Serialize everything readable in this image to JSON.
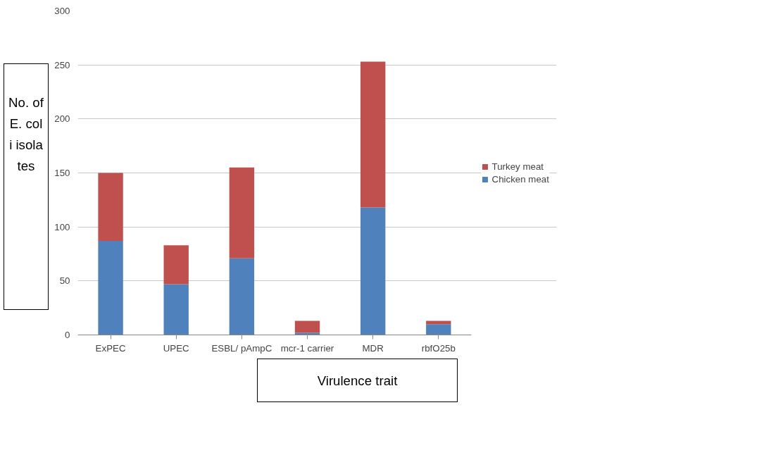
{
  "chart_data": {
    "type": "bar",
    "stacked": true,
    "xlabel": "Virulence trait",
    "ylabel": "No. of E. coli isolates",
    "categories": [
      "ExPEC",
      "UPEC",
      "ESBL/ pAmpC",
      "mcr-1 carrier",
      "MDR",
      "rbfO25b"
    ],
    "series": [
      {
        "name": "Chicken meat",
        "color": "#4f81bd",
        "values": [
          87,
          47,
          71,
          2,
          118,
          10
        ]
      },
      {
        "name": "Turkey meat",
        "color": "#c0504d",
        "values": [
          63,
          36,
          84,
          11,
          135,
          3
        ]
      }
    ],
    "ylim": [
      0,
      300
    ],
    "yticks": [
      0,
      50,
      100,
      150,
      200,
      250,
      300
    ],
    "grid": "y",
    "legend": "right"
  }
}
